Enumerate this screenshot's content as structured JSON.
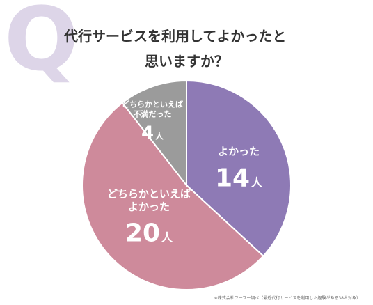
{
  "question_mark": "Q",
  "title_line1": "代行サービスを利用してよかったと",
  "title_line2": "思いますか？",
  "chart_data": {
    "type": "pie",
    "unit": "人",
    "slices": [
      {
        "label": "よかった",
        "value": 14,
        "color": "#8e7ab5"
      },
      {
        "label": "どちらかといえばよかった",
        "value": 20,
        "color": "#ce8a9b"
      },
      {
        "label": "どちらかといえば不満だった",
        "value": 4,
        "color": "#9b9b9b"
      }
    ]
  },
  "slice_labels": [
    {
      "lines": [
        "よかった"
      ],
      "number": "14",
      "unit": "人"
    },
    {
      "lines": [
        "どちらかといえば",
        "よかった"
      ],
      "number": "20",
      "unit": "人"
    },
    {
      "lines": [
        "どちらかといえば",
        "不満だった"
      ],
      "number": "4",
      "unit": "人"
    }
  ],
  "footnote": "※株式会社フーフー調べ（最近代行サービスを利用した経験がある38人対象）"
}
